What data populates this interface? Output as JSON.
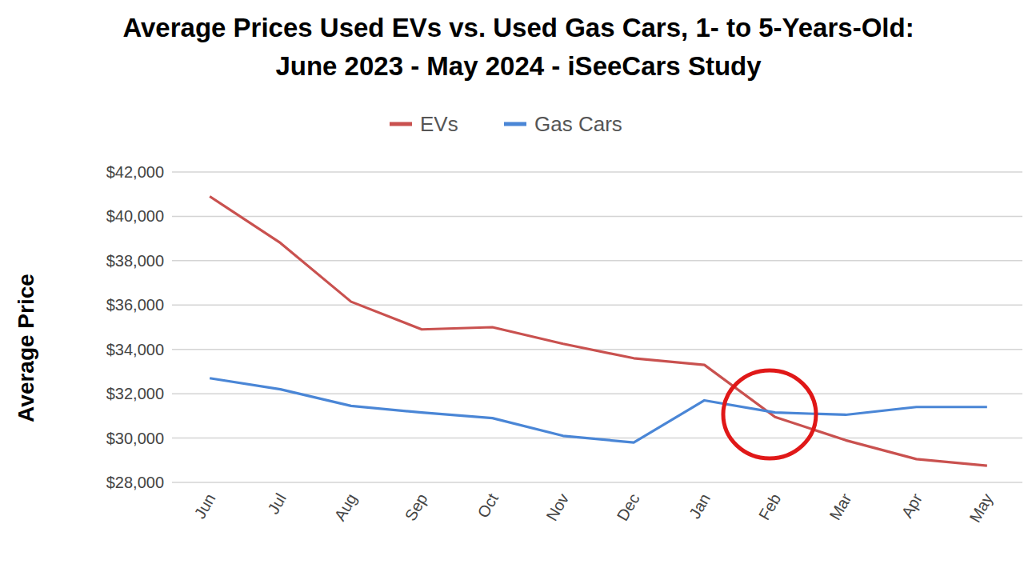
{
  "chart_data": {
    "type": "line",
    "title": [
      "Average Prices Used EVs vs. Used Gas Cars, 1- to 5-Years-Old:",
      "June 2023 - May 2024 - iSeeCars Study"
    ],
    "y_label": "Average Price",
    "categories": [
      "Jun",
      "Jul",
      "Aug",
      "Sep",
      "Oct",
      "Nov",
      "Dec",
      "Jan",
      "Feb",
      "Mar",
      "Apr",
      "May"
    ],
    "series": [
      {
        "name": "EVs",
        "color": "#c9514f",
        "values": [
          40900,
          38800,
          36150,
          34900,
          35000,
          34250,
          33600,
          33300,
          30950,
          29900,
          29050,
          28750
        ]
      },
      {
        "name": "Gas Cars",
        "color": "#4a86d6",
        "values": [
          32700,
          32200,
          31450,
          31150,
          30900,
          30100,
          29800,
          31700,
          31150,
          31050,
          31400,
          31400
        ]
      }
    ],
    "ylim": [
      28000,
      42000
    ],
    "yticks": [
      {
        "value": 28000,
        "label": "$28,000"
      },
      {
        "value": 30000,
        "label": "$30,000"
      },
      {
        "value": 32000,
        "label": "$32,000"
      },
      {
        "value": 34000,
        "label": "$34,000"
      },
      {
        "value": 36000,
        "label": "$36,000"
      },
      {
        "value": 38000,
        "label": "$38,000"
      },
      {
        "value": 40000,
        "label": "$40,000"
      },
      {
        "value": 42000,
        "label": "$42,000"
      }
    ],
    "grid": true,
    "legend": "top"
  }
}
